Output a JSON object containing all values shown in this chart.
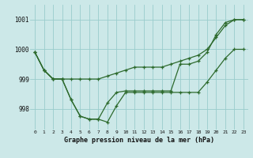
{
  "title": "Graphe pression niveau de la mer (hPa)",
  "background_color": "#cce8e8",
  "grid_color": "#99cccc",
  "line_color": "#2d6a2d",
  "x_labels": [
    "0",
    "1",
    "2",
    "3",
    "4",
    "5",
    "6",
    "7",
    "8",
    "9",
    "10",
    "11",
    "12",
    "13",
    "14",
    "15",
    "16",
    "17",
    "18",
    "19",
    "20",
    "21",
    "22",
    "23"
  ],
  "ylim": [
    997.3,
    1001.5
  ],
  "yticks": [
    998,
    999,
    1000,
    1001
  ],
  "s1": [
    999.9,
    999.3,
    999.0,
    999.0,
    999.0,
    999.0,
    999.0,
    999.0,
    999.1,
    999.2,
    999.3,
    999.4,
    999.4,
    999.4,
    999.4,
    999.5,
    999.6,
    999.7,
    999.8,
    1000.0,
    1000.4,
    1000.8,
    1001.0,
    1001.0
  ],
  "s2": [
    999.9,
    999.3,
    999.0,
    999.0,
    998.3,
    997.75,
    997.65,
    997.65,
    998.2,
    998.55,
    998.6,
    998.6,
    998.6,
    998.6,
    998.6,
    998.6,
    999.5,
    999.5,
    999.6,
    999.9,
    1000.5,
    1000.9,
    1001.0,
    1001.0
  ],
  "s3": [
    999.9,
    999.3,
    999.0,
    999.0,
    998.3,
    997.75,
    997.65,
    997.65,
    997.55,
    998.1,
    998.55,
    998.55,
    998.55,
    998.55,
    998.55,
    998.55,
    998.55,
    998.55,
    998.55,
    998.9,
    999.3,
    999.7,
    1000.0,
    1000.0
  ]
}
